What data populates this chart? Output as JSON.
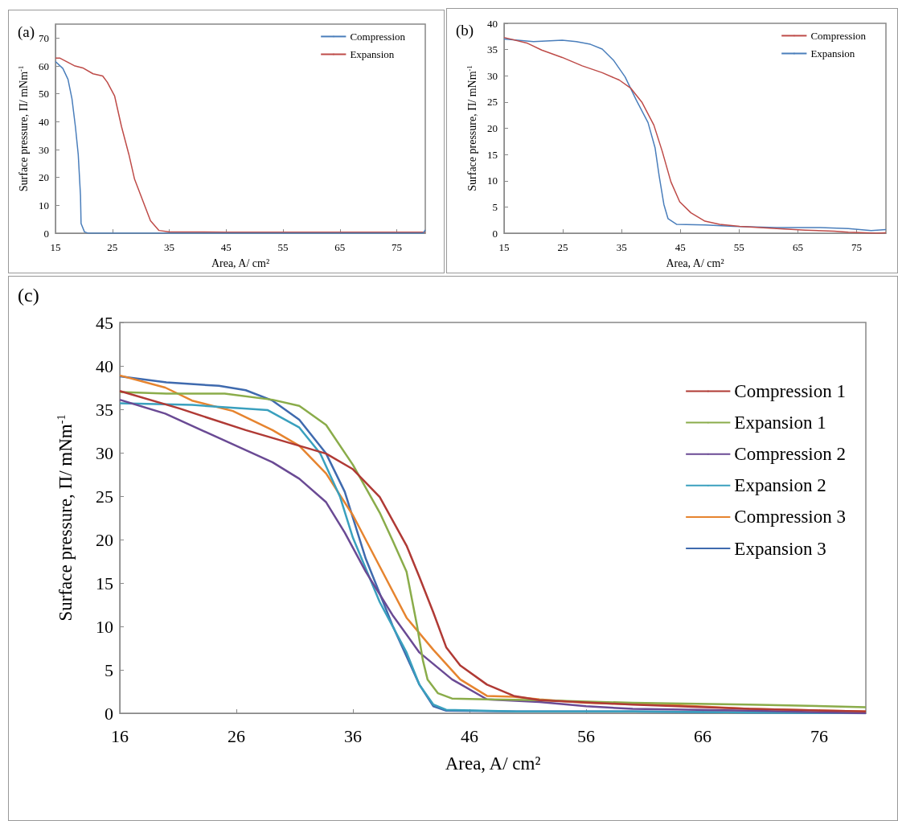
{
  "chart_data": [
    {
      "type": "line",
      "title": "(a)",
      "xlabel": "Area, A/ cm²",
      "ylabel": "Surface pressure, Π/ mNm$^{-1}$",
      "xlim": [
        15,
        80
      ],
      "xticks": [
        15,
        25,
        35,
        45,
        55,
        65,
        75
      ],
      "ylim": [
        0,
        75
      ],
      "yticks": [
        0,
        10,
        20,
        30,
        40,
        50,
        60,
        70
      ],
      "grid": false,
      "legend": "top right",
      "marker": "none",
      "line_style": "solid",
      "series": [
        {
          "name": "Compression",
          "color": "#4a7ebb",
          "x": [
            15,
            16.3,
            17.2,
            17.9,
            18.5,
            19.0,
            19.4,
            19.5,
            20.1,
            20.8,
            30,
            45,
            60,
            75,
            79.6,
            80
          ],
          "values": [
            61.6,
            59.1,
            55.2,
            48.2,
            38.3,
            28.3,
            13.4,
            3.5,
            0.5,
            0,
            0,
            0,
            0,
            0,
            0,
            1.2
          ]
        },
        {
          "name": "Expansion",
          "color": "#be4b48",
          "x": [
            15,
            15.8,
            18.3,
            19.8,
            21.6,
            23.3,
            24.1,
            25.4,
            26.6,
            27.9,
            28.9,
            30.4,
            31.7,
            33.2,
            34.9,
            45,
            60,
            80
          ],
          "values": [
            62.8,
            62.8,
            60.1,
            59.3,
            57.2,
            56.4,
            54.2,
            49.2,
            38.3,
            28.3,
            19.4,
            11.4,
            4.5,
            1.0,
            0.5,
            0.4,
            0.4,
            0.4
          ]
        }
      ]
    },
    {
      "type": "line",
      "title": "(b)",
      "xlabel": "Area, A/ cm²",
      "ylabel": "Surface pressure, Π/ mNm$^{-1}$",
      "xlim": [
        15,
        80
      ],
      "xticks": [
        15,
        25,
        35,
        45,
        55,
        65,
        75
      ],
      "ylim": [
        0,
        40
      ],
      "yticks": [
        0,
        5,
        10,
        15,
        20,
        25,
        30,
        35,
        40
      ],
      "grid": false,
      "legend": "top right",
      "marker": "none",
      "line_style": "solid",
      "series": [
        {
          "name": "Compression",
          "color": "#be4b48",
          "x": [
            15,
            19.0,
            21.4,
            24.9,
            28.3,
            31.7,
            34.6,
            36.6,
            38.5,
            40.5,
            41.9,
            43.4,
            44.9,
            46.8,
            49.2,
            51.7,
            55.1,
            61.4,
            66.3,
            71.2,
            73.6,
            78.5,
            80
          ],
          "values": [
            37.3,
            36.2,
            34.9,
            33.5,
            31.9,
            30.6,
            29.2,
            27.6,
            24.9,
            20.6,
            15.7,
            9.8,
            6.0,
            3.9,
            2.3,
            1.7,
            1.3,
            0.9,
            0.6,
            0.4,
            0.2,
            0,
            0.1
          ]
        },
        {
          "name": "Expansion",
          "color": "#4a7ebb",
          "x": [
            15,
            20.0,
            24.9,
            27.3,
            29.7,
            31.7,
            33.6,
            35.6,
            37.5,
            39.5,
            40.7,
            41.4,
            42.2,
            42.9,
            44.4,
            49.2,
            54.1,
            61.4,
            68.8,
            73.6,
            77.5,
            80
          ],
          "values": [
            37.0,
            36.5,
            36.8,
            36.5,
            36.0,
            35.1,
            33.0,
            29.8,
            25.4,
            21.1,
            16.3,
            10.9,
            5.5,
            2.8,
            1.7,
            1.6,
            1.3,
            1.1,
            1.1,
            0.9,
            0.5,
            0.7
          ]
        }
      ]
    },
    {
      "type": "line",
      "title": "(c)",
      "xlabel": "Area, A/ cm²",
      "ylabel": "Surface pressure, Π/ mNm$^{-1}$",
      "xlim": [
        16,
        80
      ],
      "xticks": [
        16,
        26,
        36,
        46,
        56,
        66,
        76
      ],
      "ylim": [
        0,
        45
      ],
      "yticks": [
        0,
        5,
        10,
        15,
        20,
        25,
        30,
        35,
        40,
        45
      ],
      "grid": false,
      "legend": "top right",
      "marker": "none",
      "line_style": "solid",
      "series": [
        {
          "name": "Compression 1",
          "color": "#b03a35",
          "x": [
            16,
            21.1,
            26.8,
            31.4,
            33.7,
            36.0,
            38.3,
            40.6,
            41.7,
            42.9,
            44.0,
            45.2,
            47.5,
            49.8,
            52,
            60,
            70,
            80
          ],
          "values": [
            37.1,
            35.1,
            32.6,
            30.8,
            29.9,
            28.1,
            24.9,
            19.3,
            15.7,
            11.6,
            7.6,
            5.5,
            3.3,
            2.0,
            1.5,
            1.0,
            0.5,
            0.2
          ]
        },
        {
          "name": "Expansion 1",
          "color": "#8aac4a",
          "x": [
            16,
            20,
            25,
            29.1,
            31.4,
            33.7,
            36.0,
            38.3,
            39.4,
            40.6,
            41.5,
            42.0,
            42.4,
            43.3,
            44.5,
            47.5,
            52,
            60,
            70,
            80
          ],
          "values": [
            37.0,
            36.8,
            36.8,
            36.1,
            35.4,
            33.2,
            28.6,
            23.1,
            19.9,
            16.3,
            10.1,
            6.1,
            3.9,
            2.3,
            1.7,
            1.6,
            1.5,
            1.2,
            1.0,
            0.7
          ]
        },
        {
          "name": "Compression 2",
          "color": "#6a4a94",
          "x": [
            16,
            19.9,
            24.5,
            29.1,
            31.4,
            33.7,
            35.3,
            37.1,
            39.4,
            41.7,
            44.5,
            47.5,
            52,
            56,
            60,
            70,
            80
          ],
          "values": [
            36.1,
            34.5,
            31.7,
            28.9,
            27.0,
            24.3,
            20.8,
            16.3,
            11.3,
            7.0,
            3.9,
            1.6,
            1.3,
            0.8,
            0.5,
            0.3,
            0
          ]
        },
        {
          "name": "Expansion 2",
          "color": "#3aa0be",
          "x": [
            16,
            22.2,
            28.7,
            31.4,
            33.2,
            34.9,
            36.0,
            38.3,
            40.6,
            41.7,
            42.9,
            44.0,
            50,
            60,
            70,
            80
          ],
          "values": [
            35.7,
            35.5,
            34.9,
            32.9,
            29.9,
            24.9,
            20.2,
            12.8,
            7.0,
            3.3,
            1.0,
            0.4,
            0.2,
            0.2,
            0.1,
            0
          ]
        },
        {
          "name": "Compression 3",
          "color": "#e6842f",
          "x": [
            16,
            19.9,
            22.2,
            25.7,
            29.1,
            31.4,
            33.7,
            36.0,
            38.3,
            40.6,
            42.9,
            45.2,
            47.5,
            49.8,
            52,
            56,
            64,
            70,
            80
          ],
          "values": [
            38.9,
            37.5,
            36.0,
            34.8,
            32.6,
            30.8,
            27.6,
            22.8,
            16.9,
            11.0,
            7.3,
            3.9,
            2.0,
            1.9,
            1.6,
            1.2,
            0.9,
            0.5,
            0.2
          ]
        },
        {
          "name": "Expansion 3",
          "color": "#3f6aae",
          "x": [
            16,
            20.0,
            24.5,
            26.8,
            29.1,
            31.4,
            33.7,
            35.3,
            37.1,
            39.4,
            41.7,
            42.9,
            44.0,
            50,
            60,
            70,
            80
          ],
          "values": [
            38.8,
            38.1,
            37.7,
            37.2,
            36.0,
            33.8,
            29.9,
            25.5,
            17.8,
            10.1,
            3.3,
            0.8,
            0.3,
            0.2,
            0.2,
            0.1,
            0
          ]
        }
      ]
    }
  ]
}
